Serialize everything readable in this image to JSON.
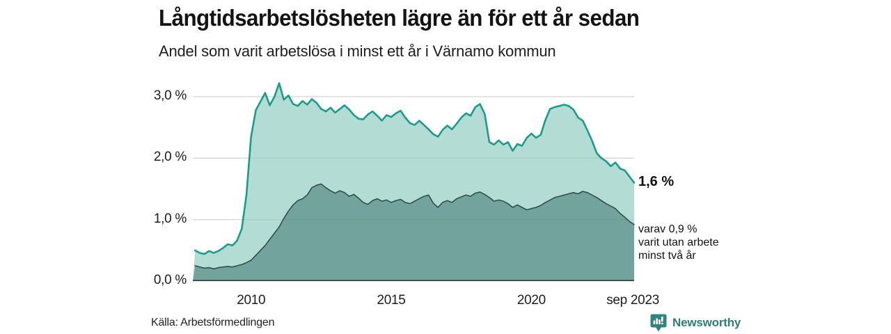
{
  "header": {
    "title": "Långtidsarbetslösheten lägre än för ett år sedan",
    "subtitle": "Andel som varit arbetslösa i minst ett år i Värnamo kommun"
  },
  "chart_data": {
    "type": "area",
    "title": "Långtidsarbetslösheten lägre än för ett år sedan",
    "subtitle": "Andel som varit arbetslösa i minst ett år i Värnamo kommun",
    "unit": "%",
    "x_start": 2008.0,
    "x_step_years": 0.1666667,
    "xlim": [
      2007.92,
      2023.667
    ],
    "ylim": [
      0,
      3.35
    ],
    "grid_on": true,
    "grid_color": "#e0e0e0",
    "axis_color": "#3a3a3a",
    "yticks": [
      {
        "v": 0,
        "label": "0,0 %"
      },
      {
        "v": 1,
        "label": "1,0 %"
      },
      {
        "v": 2,
        "label": "2,0 %"
      },
      {
        "v": 3,
        "label": "3,0 %"
      }
    ],
    "xticks": [
      {
        "v": 2010,
        "label": "2010"
      },
      {
        "v": 2015,
        "label": "2015"
      },
      {
        "v": 2020,
        "label": "2020"
      },
      {
        "v": 2023.62,
        "label": "sep 2023"
      }
    ],
    "series": [
      {
        "name": "Andel som varit arbetslösa i minst ett år",
        "line_color": "#1a9c8b",
        "fill_color": "#b3dcd5",
        "line_width": 2.6,
        "end_value": "1,6 %",
        "values": [
          0.5,
          0.46,
          0.44,
          0.49,
          0.46,
          0.49,
          0.54,
          0.6,
          0.58,
          0.66,
          0.85,
          1.4,
          2.35,
          2.78,
          2.92,
          3.06,
          2.86,
          3.0,
          3.22,
          2.95,
          3.02,
          2.88,
          2.85,
          2.93,
          2.87,
          2.96,
          2.9,
          2.8,
          2.76,
          2.82,
          2.74,
          2.8,
          2.86,
          2.79,
          2.7,
          2.64,
          2.63,
          2.71,
          2.76,
          2.69,
          2.61,
          2.7,
          2.67,
          2.73,
          2.77,
          2.66,
          2.57,
          2.54,
          2.61,
          2.54,
          2.47,
          2.39,
          2.35,
          2.46,
          2.53,
          2.47,
          2.56,
          2.66,
          2.73,
          2.69,
          2.83,
          2.88,
          2.72,
          2.26,
          2.22,
          2.29,
          2.22,
          2.26,
          2.12,
          2.23,
          2.2,
          2.33,
          2.4,
          2.33,
          2.38,
          2.62,
          2.8,
          2.83,
          2.85,
          2.87,
          2.85,
          2.79,
          2.66,
          2.61,
          2.45,
          2.28,
          2.08,
          2.0,
          1.95,
          1.87,
          1.93,
          1.83,
          1.8,
          1.7,
          1.6
        ]
      },
      {
        "name": "varav utan arbete minst två år",
        "line_color": "#2f4f4b",
        "fill_color": "#72a39c",
        "line_width": 1.6,
        "end_value": "0,9 %",
        "values": [
          0.25,
          0.23,
          0.21,
          0.22,
          0.2,
          0.22,
          0.23,
          0.24,
          0.23,
          0.25,
          0.27,
          0.3,
          0.34,
          0.42,
          0.5,
          0.58,
          0.68,
          0.78,
          0.88,
          1.02,
          1.14,
          1.24,
          1.31,
          1.34,
          1.4,
          1.52,
          1.56,
          1.58,
          1.52,
          1.47,
          1.43,
          1.47,
          1.44,
          1.38,
          1.41,
          1.35,
          1.28,
          1.25,
          1.31,
          1.34,
          1.3,
          1.32,
          1.28,
          1.31,
          1.33,
          1.28,
          1.26,
          1.3,
          1.34,
          1.38,
          1.4,
          1.27,
          1.2,
          1.28,
          1.31,
          1.28,
          1.34,
          1.37,
          1.4,
          1.38,
          1.43,
          1.45,
          1.41,
          1.36,
          1.3,
          1.32,
          1.3,
          1.26,
          1.2,
          1.24,
          1.2,
          1.16,
          1.18,
          1.2,
          1.23,
          1.28,
          1.32,
          1.36,
          1.38,
          1.4,
          1.42,
          1.44,
          1.42,
          1.46,
          1.44,
          1.4,
          1.36,
          1.31,
          1.26,
          1.22,
          1.18,
          1.1,
          1.04,
          0.97,
          0.92
        ]
      }
    ],
    "annotations": {
      "end_value_label": "1,6 %",
      "sub_note": "varav 0,9 %\nvarit utan arbete\nminst två år"
    }
  },
  "footer": {
    "source": "Källa: Arbetsförmedlingen",
    "logo_text": "Newsworthy",
    "logo_color": "#2e7d74",
    "logo_icon_color": "#2e857b"
  }
}
